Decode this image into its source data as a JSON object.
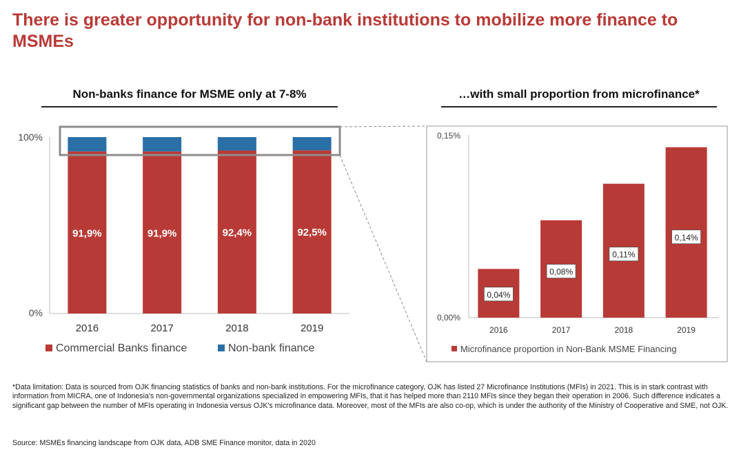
{
  "title": "There is greater opportunity for non-bank institutions to mobilize more finance to MSMEs",
  "left_subtitle": "Non-banks finance for MSME only at 7-8%",
  "right_subtitle": "…with small proportion from microfinance*",
  "footnote": "*Data limitation: Data is sourced from OJK financing statistics of banks and non-bank institutions. For the microfinance category, OJK has listed 27 Microfinance Institutions (MFIs) in 2021. This is in stark contrast with information from MICRA, one of Indonesia's non-governmental organizations specialized in empowering MFIs, that it has helped more than 2110 MFIs since they began their operation in 2006. Such difference indicates a significant gap between the number of MFIs operating in Indonesia versus OJK's microfinance data. Moreover, most of the MFIs are also co-op, which is under the authority of the Ministry of Cooperative and SME, not OJK.",
  "source": "Source: MSMEs financing landscape from OJK data, ADB SME Finance monitor, data in 2020",
  "colors": {
    "bank": "#b83a36",
    "nonbank": "#2a6fa6",
    "title": "#b83a36"
  },
  "chart_data": [
    {
      "type": "bar",
      "stacked": true,
      "categories": [
        "2016",
        "2017",
        "2018",
        "2019"
      ],
      "series": [
        {
          "name": "Commercial Banks finance",
          "values": [
            91.9,
            91.9,
            92.4,
            92.5
          ],
          "labels": [
            "91,9%",
            "91,9%",
            "92,4%",
            "92,5%"
          ]
        },
        {
          "name": "Non-bank finance",
          "values": [
            8.1,
            8.1,
            7.6,
            7.5
          ]
        }
      ],
      "ylim": [
        0,
        100
      ],
      "ytick_labels": [
        "0%",
        "100%"
      ],
      "legend": "bottom"
    },
    {
      "type": "bar",
      "categories": [
        "2016",
        "2017",
        "2018",
        "2019"
      ],
      "series": [
        {
          "name": "Microfinance proportion in Non-Bank MSME Financing",
          "values": [
            0.04,
            0.08,
            0.11,
            0.14
          ],
          "labels": [
            "0,04%",
            "0,08%",
            "0,11%",
            "0,14%"
          ]
        }
      ],
      "ylim": [
        0,
        0.15
      ],
      "ytick_labels": [
        "0,00%",
        "0,15%"
      ],
      "legend": "bottom"
    }
  ]
}
